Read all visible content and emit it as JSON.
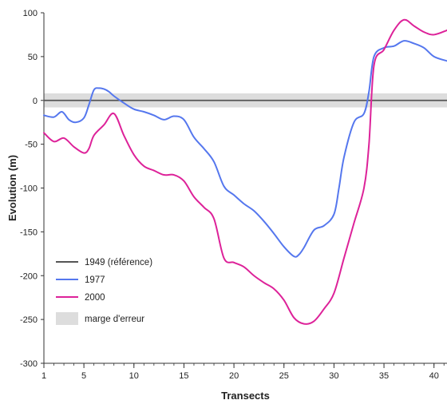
{
  "chart_data": {
    "type": "line",
    "xlabel": "Transects",
    "ylabel": "Evolution (m)",
    "xlim": [
      1,
      41.3
    ],
    "ylim": [
      -300,
      100
    ],
    "x_ticks": [
      1,
      5,
      10,
      15,
      20,
      25,
      30,
      35,
      40
    ],
    "y_ticks": [
      100,
      50,
      0,
      -50,
      -100,
      -150,
      -200,
      -250,
      -300
    ],
    "error_band": {
      "label": "marge d'erreur",
      "lower": -8,
      "upper": 8,
      "color": "#dddddd"
    },
    "legend_position": "bottom-left",
    "series": [
      {
        "name": "1949 (référence)",
        "color": "#555555",
        "x": [
          1,
          41.3
        ],
        "y": [
          0,
          0
        ]
      },
      {
        "name": "1977",
        "color": "#5577ee",
        "x": [
          1,
          2,
          2.8,
          3.5,
          4.2,
          5,
          5.5,
          6,
          6.5,
          7,
          7.5,
          8,
          9,
          10,
          11,
          12,
          13,
          14,
          15,
          16,
          17,
          18,
          19,
          20,
          21,
          22,
          23,
          24,
          25,
          26,
          26.5,
          27,
          28,
          29,
          30,
          30.5,
          31,
          32,
          33,
          33.5,
          34,
          35,
          36,
          37,
          38,
          39,
          40,
          41.3
        ],
        "y": [
          -17,
          -19,
          -13,
          -22,
          -25,
          -20,
          -5,
          12,
          14,
          13,
          10,
          5,
          -3,
          -10,
          -13,
          -17,
          -22,
          -18,
          -22,
          -42,
          -55,
          -70,
          -98,
          -108,
          -118,
          -126,
          -138,
          -152,
          -167,
          -178,
          -176,
          -168,
          -148,
          -143,
          -130,
          -100,
          -65,
          -25,
          -15,
          10,
          50,
          60,
          62,
          68,
          65,
          60,
          50,
          45
        ]
      },
      {
        "name": "2000",
        "color": "#dd2299",
        "x": [
          1,
          2,
          3,
          4,
          5,
          5.5,
          6,
          7,
          8,
          9,
          10,
          11,
          12,
          13,
          14,
          15,
          16,
          17,
          18,
          19,
          20,
          21,
          22,
          23,
          24,
          25,
          26,
          27,
          28,
          29,
          30,
          31,
          32,
          33,
          33.5,
          34,
          35,
          36,
          37,
          38,
          39,
          40,
          41.3
        ],
        "y": [
          -37,
          -47,
          -43,
          -53,
          -60,
          -55,
          -40,
          -28,
          -15,
          -40,
          -62,
          -75,
          -80,
          -85,
          -85,
          -92,
          -110,
          -122,
          -135,
          -180,
          -185,
          -190,
          -200,
          -208,
          -215,
          -228,
          -248,
          -255,
          -252,
          -238,
          -220,
          -180,
          -140,
          -100,
          -50,
          40,
          58,
          80,
          92,
          85,
          78,
          75,
          80
        ]
      }
    ]
  }
}
